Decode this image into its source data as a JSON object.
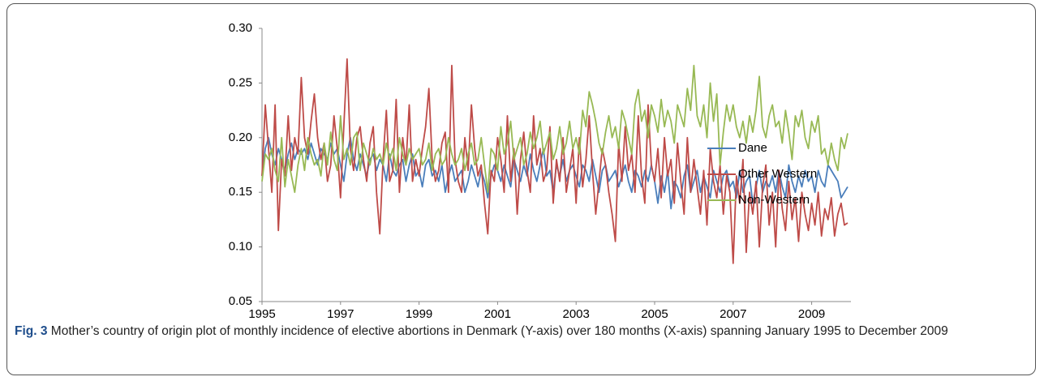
{
  "chart_data": {
    "type": "line",
    "categories": [
      "1995",
      null,
      null,
      null,
      null,
      null,
      null,
      null,
      null,
      null,
      null,
      null,
      null,
      null,
      null,
      null,
      null,
      null,
      null,
      null,
      null,
      null,
      null,
      null,
      "1997",
      null,
      null,
      null,
      null,
      null,
      null,
      null,
      null,
      null,
      null,
      null,
      null,
      null,
      null,
      null,
      null,
      null,
      null,
      null,
      null,
      null,
      null,
      null,
      "1999",
      null,
      null,
      null,
      null,
      null,
      null,
      null,
      null,
      null,
      null,
      null,
      null,
      null,
      null,
      null,
      null,
      null,
      null,
      null,
      null,
      null,
      null,
      null,
      "2001",
      null,
      null,
      null,
      null,
      null,
      null,
      null,
      null,
      null,
      null,
      null,
      null,
      null,
      null,
      null,
      null,
      null,
      null,
      null,
      null,
      null,
      null,
      null,
      "2003",
      null,
      null,
      null,
      null,
      null,
      null,
      null,
      null,
      null,
      null,
      null,
      null,
      null,
      null,
      null,
      null,
      null,
      null,
      null,
      null,
      null,
      null,
      null,
      "2005",
      null,
      null,
      null,
      null,
      null,
      null,
      null,
      null,
      null,
      null,
      null,
      null,
      null,
      null,
      null,
      null,
      null,
      null,
      null,
      null,
      null,
      null,
      null,
      "2007",
      null,
      null,
      null,
      null,
      null,
      null,
      null,
      null,
      null,
      null,
      null,
      null,
      null,
      null,
      null,
      null,
      null,
      null,
      null,
      null,
      null,
      null,
      null,
      "2009",
      null,
      null,
      null,
      null,
      null,
      null,
      null,
      null,
      null,
      null,
      null
    ],
    "series": [
      {
        "name": "Dane",
        "color": "#4a7ebb",
        "values": [
          0.165,
          0.19,
          0.2,
          0.185,
          0.175,
          0.19,
          0.18,
          0.17,
          0.185,
          0.195,
          0.18,
          0.19,
          0.185,
          0.19,
          0.18,
          0.195,
          0.185,
          0.175,
          0.19,
          0.185,
          0.18,
          0.195,
          0.185,
          0.19,
          0.175,
          0.16,
          0.185,
          0.2,
          0.18,
          0.17,
          0.185,
          0.175,
          0.165,
          0.18,
          0.185,
          0.17,
          0.18,
          0.175,
          0.16,
          0.185,
          0.17,
          0.165,
          0.175,
          0.18,
          0.16,
          0.175,
          0.185,
          0.165,
          0.17,
          0.155,
          0.175,
          0.18,
          0.165,
          0.17,
          0.16,
          0.175,
          0.15,
          0.165,
          0.175,
          0.16,
          0.165,
          0.17,
          0.15,
          0.16,
          0.175,
          0.165,
          0.155,
          0.17,
          0.16,
          0.145,
          0.165,
          0.175,
          0.17,
          0.16,
          0.175,
          0.165,
          0.155,
          0.18,
          0.17,
          0.16,
          0.175,
          0.165,
          0.185,
          0.17,
          0.16,
          0.175,
          0.19,
          0.165,
          0.17,
          0.15,
          0.175,
          0.165,
          0.18,
          0.16,
          0.17,
          0.175,
          0.165,
          0.155,
          0.175,
          0.17,
          0.16,
          0.18,
          0.165,
          0.15,
          0.17,
          0.175,
          0.16,
          0.165,
          0.17,
          0.155,
          0.165,
          0.175,
          0.16,
          0.15,
          0.17,
          0.165,
          0.155,
          0.17,
          0.16,
          0.175,
          0.16,
          0.14,
          0.165,
          0.15,
          0.17,
          0.135,
          0.16,
          0.155,
          0.145,
          0.165,
          0.175,
          0.15,
          0.16,
          0.17,
          0.15,
          0.165,
          0.155,
          0.145,
          0.17,
          0.16,
          0.15,
          0.165,
          0.17,
          0.155,
          0.16,
          0.145,
          0.17,
          0.15,
          0.16,
          0.165,
          0.14,
          0.155,
          0.17,
          0.15,
          0.16,
          0.155,
          0.165,
          0.15,
          0.17,
          0.155,
          0.145,
          0.175,
          0.16,
          0.15,
          0.165,
          0.155,
          0.17,
          0.16,
          0.165,
          0.15,
          0.17,
          0.16,
          0.155,
          0.175,
          0.17,
          0.165,
          0.16,
          0.145,
          0.15,
          0.155
        ]
      },
      {
        "name": "Other Western",
        "color": "#be4b48",
        "values": [
          0.165,
          0.23,
          0.19,
          0.15,
          0.23,
          0.115,
          0.18,
          0.165,
          0.22,
          0.17,
          0.2,
          0.185,
          0.255,
          0.2,
          0.185,
          0.215,
          0.24,
          0.2,
          0.18,
          0.195,
          0.16,
          0.175,
          0.22,
          0.19,
          0.145,
          0.21,
          0.272,
          0.19,
          0.17,
          0.2,
          0.21,
          0.18,
          0.16,
          0.195,
          0.21,
          0.15,
          0.112,
          0.18,
          0.225,
          0.16,
          0.17,
          0.235,
          0.15,
          0.2,
          0.175,
          0.23,
          0.16,
          0.18,
          0.165,
          0.19,
          0.21,
          0.245,
          0.18,
          0.16,
          0.17,
          0.195,
          0.205,
          0.15,
          0.266,
          0.18,
          0.16,
          0.15,
          0.2,
          0.17,
          0.23,
          0.19,
          0.165,
          0.175,
          0.14,
          0.112,
          0.17,
          0.16,
          0.2,
          0.18,
          0.15,
          0.22,
          0.16,
          0.19,
          0.13,
          0.18,
          0.205,
          0.17,
          0.15,
          0.22,
          0.175,
          0.19,
          0.16,
          0.17,
          0.21,
          0.14,
          0.18,
          0.16,
          0.2,
          0.15,
          0.17,
          0.19,
          0.14,
          0.2,
          0.155,
          0.18,
          0.22,
          0.17,
          0.13,
          0.16,
          0.19,
          0.175,
          0.15,
          0.13,
          0.105,
          0.195,
          0.16,
          0.21,
          0.17,
          0.185,
          0.15,
          0.22,
          0.165,
          0.14,
          0.23,
          0.175,
          0.16,
          0.19,
          0.145,
          0.2,
          0.165,
          0.18,
          0.14,
          0.195,
          0.16,
          0.13,
          0.2,
          0.15,
          0.18,
          0.155,
          0.13,
          0.17,
          0.12,
          0.19,
          0.16,
          0.145,
          0.175,
          0.13,
          0.165,
          0.15,
          0.085,
          0.165,
          0.14,
          0.18,
          0.095,
          0.15,
          0.13,
          0.16,
          0.1,
          0.155,
          0.175,
          0.12,
          0.15,
          0.1,
          0.17,
          0.135,
          0.115,
          0.16,
          0.125,
          0.145,
          0.105,
          0.15,
          0.13,
          0.115,
          0.14,
          0.12,
          0.15,
          0.11,
          0.135,
          0.125,
          0.145,
          0.11,
          0.13,
          0.14,
          0.12,
          0.122
        ]
      },
      {
        "name": "Non-Western",
        "color": "#98b954",
        "values": [
          0.16,
          0.185,
          0.18,
          0.19,
          0.17,
          0.16,
          0.2,
          0.155,
          0.18,
          0.165,
          0.15,
          0.175,
          0.19,
          0.17,
          0.2,
          0.185,
          0.175,
          0.18,
          0.165,
          0.195,
          0.175,
          0.205,
          0.18,
          0.17,
          0.22,
          0.18,
          0.19,
          0.175,
          0.2,
          0.205,
          0.17,
          0.195,
          0.185,
          0.175,
          0.19,
          0.18,
          0.185,
          0.175,
          0.195,
          0.18,
          0.19,
          0.17,
          0.2,
          0.185,
          0.175,
          0.19,
          0.18,
          0.185,
          0.19,
          0.175,
          0.18,
          0.195,
          0.17,
          0.185,
          0.19,
          0.175,
          0.18,
          0.2,
          0.185,
          0.175,
          0.18,
          0.19,
          0.17,
          0.185,
          0.195,
          0.175,
          0.18,
          0.2,
          0.175,
          0.15,
          0.19,
          0.185,
          0.17,
          0.21,
          0.185,
          0.195,
          0.215,
          0.18,
          0.19,
          0.2,
          0.175,
          0.185,
          0.205,
          0.19,
          0.2,
          0.215,
          0.185,
          0.195,
          0.205,
          0.18,
          0.19,
          0.21,
          0.185,
          0.195,
          0.215,
          0.19,
          0.2,
          0.185,
          0.225,
          0.21,
          0.242,
          0.23,
          0.215,
          0.195,
          0.185,
          0.205,
          0.22,
          0.2,
          0.21,
          0.19,
          0.225,
          0.215,
          0.2,
          0.185,
          0.23,
          0.244,
          0.215,
          0.225,
          0.2,
          0.23,
          0.22,
          0.205,
          0.235,
          0.21,
          0.225,
          0.215,
          0.195,
          0.23,
          0.22,
          0.21,
          0.245,
          0.225,
          0.266,
          0.22,
          0.21,
          0.23,
          0.2,
          0.25,
          0.215,
          0.24,
          0.175,
          0.205,
          0.23,
          0.215,
          0.23,
          0.21,
          0.2,
          0.215,
          0.195,
          0.22,
          0.205,
          0.225,
          0.256,
          0.21,
          0.2,
          0.22,
          0.23,
          0.21,
          0.215,
          0.195,
          0.225,
          0.205,
          0.18,
          0.22,
          0.21,
          0.225,
          0.2,
          0.19,
          0.215,
          0.205,
          0.22,
          0.185,
          0.19,
          0.175,
          0.195,
          0.18,
          0.17,
          0.2,
          0.19,
          0.204
        ]
      }
    ],
    "ylim": [
      0.05,
      0.3
    ],
    "yticks": [
      {
        "value": 0.05,
        "label": "0.05"
      },
      {
        "value": 0.1,
        "label": "0.10"
      },
      {
        "value": 0.15,
        "label": "0.15"
      },
      {
        "value": 0.2,
        "label": "0.20"
      },
      {
        "value": 0.25,
        "label": "0.25"
      },
      {
        "value": 0.3,
        "label": "0.30"
      }
    ],
    "grid": false,
    "legend": "right",
    "caption_label": "Fig. 3",
    "caption": "Mother’s country of origin plot of monthly incidence of elective abortions in Denmark (Y-axis) over 180 months (X-axis) spanning January 1995 to December 2009"
  }
}
